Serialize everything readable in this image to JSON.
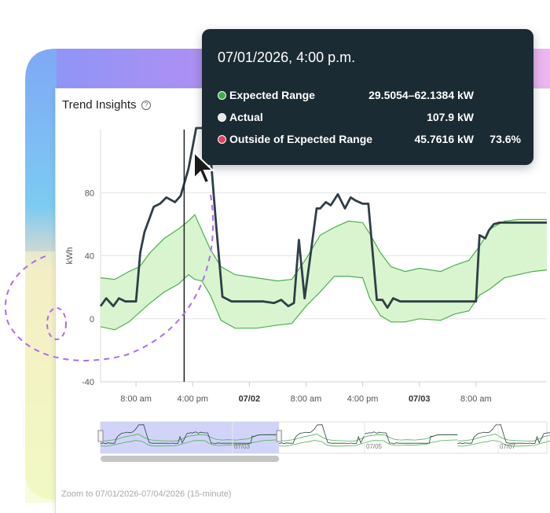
{
  "panel": {
    "title": "Trend Insights",
    "help_icon": "question-circle-icon",
    "help_glyph": "?"
  },
  "tooltip": {
    "title": "07/01/2026, 4:00 p.m.",
    "rows": [
      {
        "label": "Expected Range",
        "value": "29.5054–62.1384 kW",
        "extra": "",
        "color": "#3cb043"
      },
      {
        "label": "Actual",
        "value": "107.9 kW",
        "extra": "",
        "color": "#e8e8e8"
      },
      {
        "label": "Outside of Expected Range",
        "value": "45.7616 kW",
        "extra": "73.6%",
        "color": "#e5415b"
      }
    ]
  },
  "zoom_label": "Zoom to 07/01/2026-07/04/2026 (15-minute)",
  "colors": {
    "actual_line": "#2f3e48",
    "band_fill": "#d9f5cf",
    "band_edge": "#4caf50",
    "tooltip_bg": "#1b2b33",
    "dashed_accent": "#b06bf0"
  },
  "chart_data": {
    "type": "line",
    "ylabel": "kWh",
    "yticks": [
      -40,
      0,
      40,
      80
    ],
    "ylim": [
      -40,
      120
    ],
    "x_unit": "hours",
    "xlim": [
      3,
      66
    ],
    "xticks": [
      {
        "x": 8,
        "label": "8:00 am",
        "bold": false
      },
      {
        "x": 16,
        "label": "4:00 pm",
        "bold": false
      },
      {
        "x": 24,
        "label": "07/02",
        "bold": true
      },
      {
        "x": 32,
        "label": "8:00 am",
        "bold": false
      },
      {
        "x": 40,
        "label": "4:00 pm",
        "bold": false
      },
      {
        "x": 48,
        "label": "07/03",
        "bold": true
      },
      {
        "x": 56,
        "label": "8:00 am",
        "bold": false
      }
    ],
    "cursor_x": 14.8,
    "series": [
      {
        "role": "actual",
        "x": [
          3,
          3.8,
          4.8,
          5.6,
          6.5,
          7.2,
          8,
          8.6,
          9.2,
          10.5,
          11.4,
          12.3,
          13.5,
          14.3,
          15.4,
          16.5,
          17.7,
          18.2,
          19.3,
          20.2,
          21.5,
          23,
          24.5,
          26,
          27.5,
          28.5,
          29.5,
          30.3,
          31,
          31.8,
          32.5,
          33.5,
          34,
          34.8,
          35.5,
          36.5,
          37.5,
          38.3,
          39,
          40,
          40.8,
          42,
          42.8,
          43.5,
          44.3,
          45.3,
          46,
          46.6,
          47.5,
          49,
          51,
          53,
          55,
          56,
          56.5,
          57.3,
          57.8,
          58.5,
          59.3,
          60.2,
          61,
          62,
          63,
          64,
          65,
          66
        ],
        "y": [
          8,
          13,
          8,
          13,
          11,
          11,
          11,
          42,
          55,
          71,
          73,
          77,
          74,
          78,
          95,
          121,
          121,
          122,
          60,
          14,
          11,
          11,
          11,
          11,
          10,
          12,
          8,
          10,
          50,
          13,
          36,
          70,
          70,
          74,
          72,
          79,
          70,
          77,
          75,
          73,
          73,
          12,
          12,
          7,
          13,
          11,
          11,
          11,
          11,
          11,
          11,
          11,
          11,
          11,
          53,
          51,
          56,
          60,
          61,
          61,
          61,
          61,
          61,
          61,
          61,
          61
        ]
      },
      {
        "role": "expected-upper",
        "x": [
          3,
          5,
          7,
          8.5,
          10,
          12,
          14,
          15.4,
          16.3,
          17.3,
          18.5,
          20,
          22,
          25,
          28,
          30,
          32,
          34,
          36,
          38,
          40,
          41,
          42.5,
          44,
          46,
          48,
          51,
          53,
          55,
          56.5,
          58,
          60,
          62,
          64,
          66
        ],
        "y": [
          26,
          25,
          30,
          33,
          42,
          51,
          57,
          62,
          66,
          56,
          44,
          33,
          28,
          26,
          24,
          25,
          38,
          53,
          58,
          62,
          61,
          54,
          42,
          33,
          30,
          32,
          30,
          34,
          37,
          46,
          57,
          62,
          63,
          63,
          63
        ]
      },
      {
        "role": "expected-lower",
        "x": [
          3,
          5,
          7,
          8.5,
          10,
          12,
          14,
          15.4,
          16.3,
          17.3,
          18.5,
          20,
          22,
          25,
          28,
          30,
          32,
          34,
          36,
          38,
          40,
          41,
          42.5,
          44,
          46,
          48,
          51,
          53,
          55,
          56.5,
          58,
          60,
          62,
          64,
          66
        ],
        "y": [
          -5,
          -7,
          -2,
          4,
          10,
          17,
          22,
          28,
          25,
          24,
          15,
          -1,
          -6,
          -6,
          -4,
          -3,
          8,
          17,
          27,
          27,
          26,
          13,
          2,
          -2,
          -2,
          0,
          -1,
          3,
          5,
          15,
          19,
          26,
          28,
          30,
          31
        ]
      }
    ],
    "navigator": {
      "xtick_labels": [
        "07/03",
        "07/05",
        "07/07"
      ],
      "selected_fraction": [
        0,
        0.4
      ]
    }
  }
}
